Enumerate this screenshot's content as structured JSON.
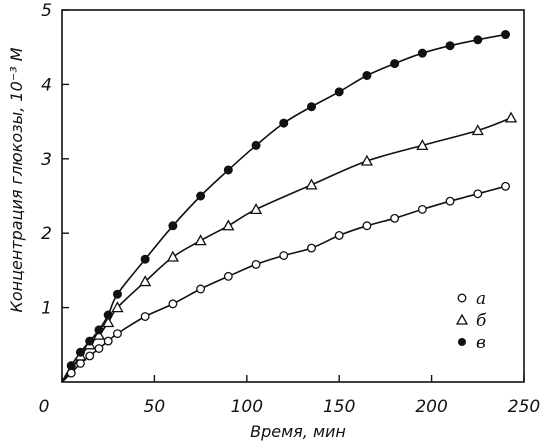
{
  "chart_data": {
    "type": "scatter",
    "title": "",
    "xlabel": "Время, мин",
    "ylabel": "Концентрация глюкозы, 10⁻³ М",
    "xlim": [
      0,
      250
    ],
    "ylim": [
      0,
      5
    ],
    "x_ticks": [
      "0",
      "50",
      "100",
      "150",
      "200",
      "250"
    ],
    "y_ticks": [
      "1",
      "2",
      "3",
      "4",
      "5"
    ],
    "legend_position": "bottom-right",
    "grid": false,
    "series": [
      {
        "name": "а",
        "marker": "open-circle",
        "x": [
          5,
          10,
          15,
          20,
          25,
          30,
          45,
          60,
          75,
          90,
          105,
          120,
          135,
          150,
          165,
          180,
          195,
          210,
          225,
          240
        ],
        "y": [
          0.12,
          0.25,
          0.35,
          0.45,
          0.55,
          0.65,
          0.88,
          1.05,
          1.25,
          1.42,
          1.58,
          1.7,
          1.8,
          1.97,
          2.1,
          2.2,
          2.32,
          2.43,
          2.53,
          2.63
        ]
      },
      {
        "name": "б",
        "marker": "open-triangle",
        "x": [
          10,
          15,
          20,
          25,
          30,
          45,
          60,
          75,
          90,
          105,
          135,
          165,
          195,
          225,
          243
        ],
        "y": [
          0.35,
          0.5,
          0.63,
          0.8,
          1.0,
          1.35,
          1.68,
          1.9,
          2.1,
          2.32,
          2.65,
          2.97,
          3.18,
          3.38,
          3.55
        ]
      },
      {
        "name": "в",
        "marker": "filled-circle",
        "x": [
          5,
          10,
          15,
          20,
          25,
          30,
          45,
          60,
          75,
          90,
          105,
          120,
          135,
          150,
          165,
          180,
          195,
          210,
          225,
          240
        ],
        "y": [
          0.22,
          0.4,
          0.55,
          0.7,
          0.9,
          1.18,
          1.65,
          2.1,
          2.5,
          2.85,
          3.18,
          3.48,
          3.7,
          3.9,
          4.12,
          4.28,
          4.42,
          4.52,
          4.6,
          4.67
        ]
      }
    ]
  }
}
